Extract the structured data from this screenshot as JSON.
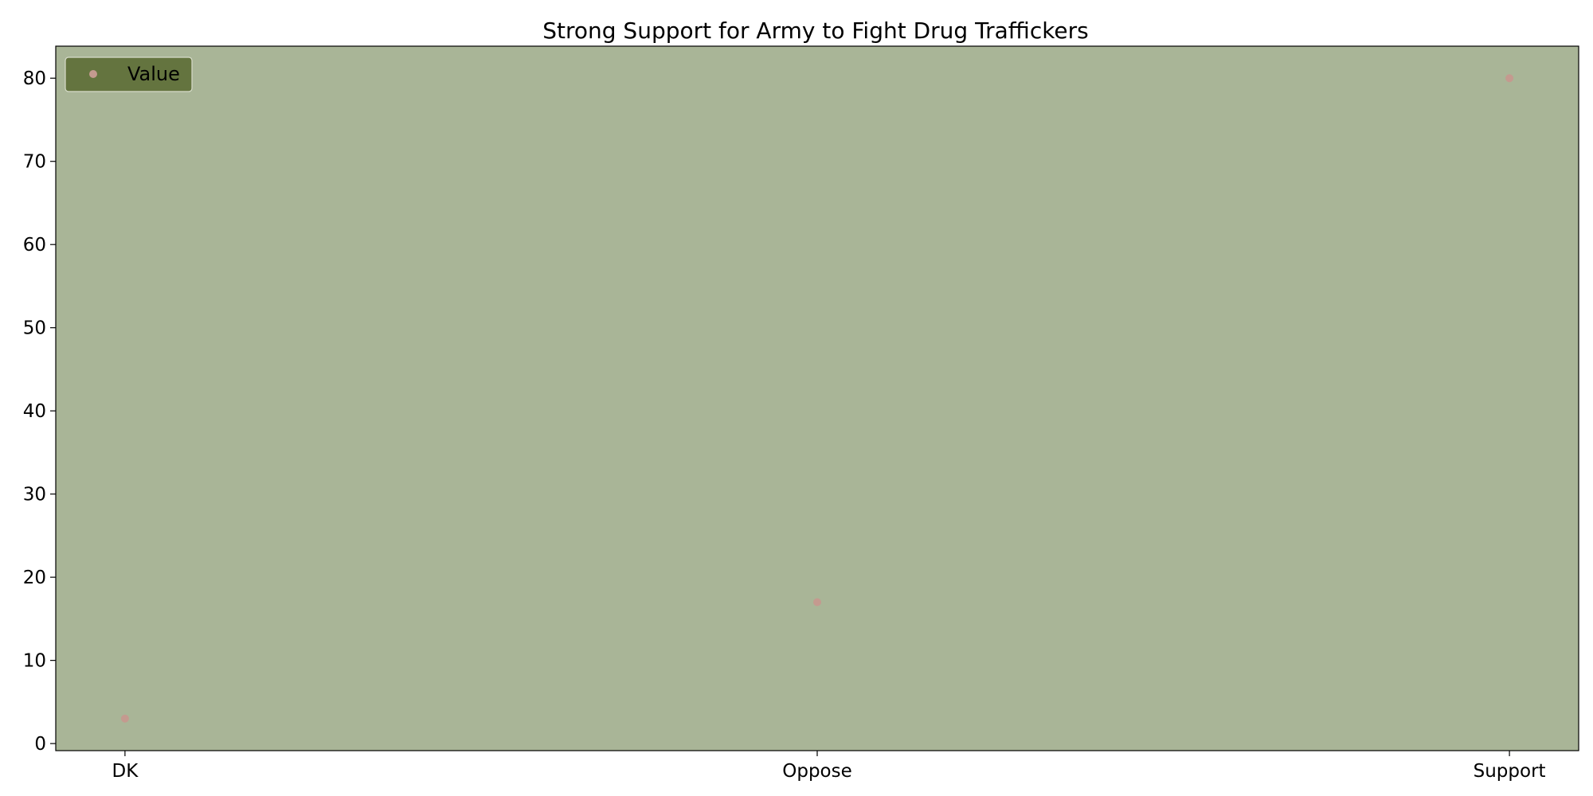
{
  "chart_data": {
    "type": "scatter",
    "title": "Strong Support for Army to Fight Drug Traffickers",
    "xlabel": "",
    "ylabel": "",
    "categories": [
      "DK",
      "Oppose",
      "Support"
    ],
    "series": [
      {
        "name": "Value",
        "values": [
          3,
          17,
          80
        ]
      }
    ],
    "ylim": [
      -0.85,
      83.85
    ],
    "yticks": [
      0,
      10,
      20,
      30,
      40,
      50,
      60,
      70,
      80
    ],
    "grid": false,
    "legend": "top-left",
    "colors": {
      "plot_background": "#a9b597",
      "marker": "#c49a8f",
      "legend_background": "#64743f",
      "legend_border": "#d8dccb",
      "axes": "#000000"
    }
  }
}
